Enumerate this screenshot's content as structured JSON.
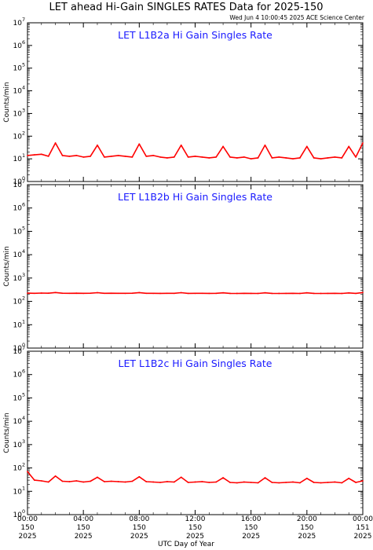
{
  "figure": {
    "title": "LET ahead Hi-Gain SINGLES RATES Data for 2025-150",
    "timestamp": "Wed Jun  4 10:00:45 2025 ACE Science Center",
    "line_color": "#ff0000",
    "panel_title_color": "#1a1aff"
  },
  "chart_data": [
    {
      "type": "line",
      "title": "LET L1B2a Hi Gain Singles Rate",
      "ylabel": "Counts/min",
      "xlabel": "UTC Day of Year",
      "y_scale": "log",
      "ylim": [
        1,
        10000000
      ],
      "xlim": [
        0,
        24
      ],
      "y_tick_labels": [
        "10^0",
        "10^1",
        "10^2",
        "10^3",
        "10^4",
        "10^5",
        "10^6",
        "10^7"
      ],
      "series": [
        {
          "x": [
            0,
            0.5,
            1,
            1.5,
            2,
            2.5,
            3,
            3.5,
            4,
            4.5,
            5,
            5.5,
            6,
            6.5,
            7,
            7.5,
            8,
            8.5,
            9,
            9.5,
            10,
            10.5,
            11,
            11.5,
            12,
            12.5,
            13,
            13.5,
            14,
            14.5,
            15,
            15.5,
            16,
            16.5,
            17,
            17.5,
            18,
            18.5,
            19,
            19.5,
            20,
            20.5,
            21,
            21.5,
            22,
            22.5,
            23,
            23.5,
            24
          ],
          "values": [
            14,
            15,
            16,
            13,
            50,
            14,
            13,
            14,
            12,
            13,
            40,
            12,
            13,
            14,
            13,
            12,
            45,
            13,
            14,
            12,
            11,
            12,
            40,
            12,
            13,
            12,
            11,
            12,
            35,
            12,
            11,
            12,
            10,
            11,
            40,
            11,
            12,
            11,
            10,
            11,
            35,
            11,
            10,
            11,
            12,
            11,
            35,
            12,
            50
          ]
        }
      ]
    },
    {
      "type": "line",
      "title": "LET L1B2b Hi Gain Singles Rate",
      "ylabel": "Counts/min",
      "xlabel": "UTC Day of Year",
      "y_scale": "log",
      "ylim": [
        1,
        10000000
      ],
      "xlim": [
        0,
        24
      ],
      "y_tick_labels": [
        "10^0",
        "10^1",
        "10^2",
        "10^3",
        "10^4",
        "10^5",
        "10^6",
        "10^7"
      ],
      "series": [
        {
          "x": [
            0,
            0.5,
            1,
            1.5,
            2,
            2.5,
            3,
            3.5,
            4,
            4.5,
            5,
            5.5,
            6,
            6.5,
            7,
            7.5,
            8,
            8.5,
            9,
            9.5,
            10,
            10.5,
            11,
            11.5,
            12,
            12.5,
            13,
            13.5,
            14,
            14.5,
            15,
            15.5,
            16,
            16.5,
            17,
            17.5,
            18,
            18.5,
            19,
            19.5,
            20,
            20.5,
            21,
            21.5,
            22,
            22.5,
            23,
            23.5,
            24
          ],
          "values": [
            225,
            222,
            226,
            224,
            240,
            223,
            222,
            224,
            221,
            223,
            235,
            222,
            223,
            222,
            221,
            223,
            238,
            222,
            221,
            220,
            222,
            221,
            235,
            220,
            221,
            222,
            220,
            221,
            232,
            220,
            219,
            221,
            220,
            219,
            233,
            220,
            219,
            220,
            221,
            219,
            232,
            220,
            219,
            220,
            221,
            219,
            230,
            220,
            240
          ]
        }
      ]
    },
    {
      "type": "line",
      "title": "LET L1B2c Hi Gain Singles Rate",
      "ylabel": "Counts/min",
      "xlabel": "UTC Day of Year",
      "y_scale": "log",
      "ylim": [
        1,
        10000000
      ],
      "xlim": [
        0,
        24
      ],
      "y_tick_labels": [
        "10^0",
        "10^1",
        "10^2",
        "10^3",
        "10^4",
        "10^5",
        "10^6",
        "10^7"
      ],
      "series": [
        {
          "x": [
            0,
            0.5,
            1,
            1.5,
            2,
            2.5,
            3,
            3.5,
            4,
            4.5,
            5,
            5.5,
            6,
            6.5,
            7,
            7.5,
            8,
            8.5,
            9,
            9.5,
            10,
            10.5,
            11,
            11.5,
            12,
            12.5,
            13,
            13.5,
            14,
            14.5,
            15,
            15.5,
            16,
            16.5,
            17,
            17.5,
            18,
            18.5,
            19,
            19.5,
            20,
            20.5,
            21,
            21.5,
            22,
            22.5,
            23,
            23.5,
            24
          ],
          "values": [
            70,
            30,
            28,
            25,
            45,
            27,
            26,
            28,
            25,
            27,
            40,
            26,
            27,
            26,
            25,
            27,
            42,
            26,
            25,
            24,
            26,
            25,
            40,
            24,
            25,
            26,
            24,
            25,
            38,
            24,
            23,
            25,
            24,
            23,
            38,
            24,
            23,
            24,
            25,
            23,
            36,
            24,
            23,
            24,
            25,
            23,
            36,
            24,
            28
          ]
        }
      ]
    }
  ],
  "x_tick_labels": [
    {
      "time": "00:00",
      "doy": "150",
      "year": "2025"
    },
    {
      "time": "04:00",
      "doy": "150",
      "year": "2025"
    },
    {
      "time": "08:00",
      "doy": "150",
      "year": "2025"
    },
    {
      "time": "12:00",
      "doy": "150",
      "year": "2025"
    },
    {
      "time": "16:00",
      "doy": "150",
      "year": "2025"
    },
    {
      "time": "20:00",
      "doy": "150",
      "year": "2025"
    },
    {
      "time": "00:00",
      "doy": "151",
      "year": "2025"
    }
  ]
}
